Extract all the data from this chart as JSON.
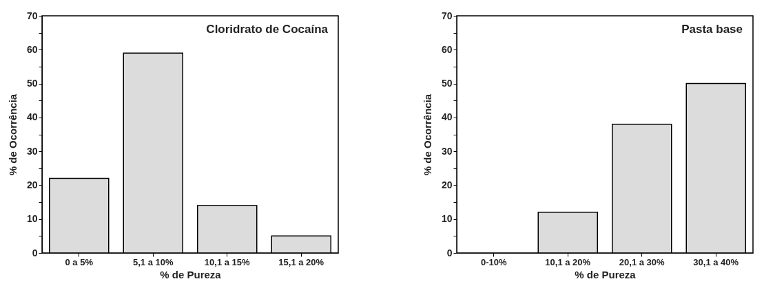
{
  "chart_data": [
    {
      "type": "bar",
      "title": "Cloridrato de Cocaína",
      "xlabel": "% de Pureza",
      "ylabel": "% de Ocorrência",
      "categories": [
        "0 a 5%",
        "5,1 a 10%",
        "10,1 a 15%",
        "15,1 a 20%"
      ],
      "values": [
        22,
        59,
        14,
        5
      ],
      "color": "#dcdcdc",
      "ylim": [
        0,
        70
      ],
      "yticks": [
        0,
        {
          "value": 5,
          "label": null
        },
        10,
        {
          "value": 15,
          "label": null
        },
        20,
        {
          "value": 25,
          "label": null
        },
        30,
        {
          "value": 35,
          "label": null
        },
        40,
        {
          "value": 45,
          "label": null
        },
        50,
        {
          "value": 55,
          "label": null
        },
        60,
        {
          "value": 65,
          "label": null
        },
        70
      ],
      "grid": false
    },
    {
      "type": "bar",
      "title": "Pasta base",
      "xlabel": "% de Pureza",
      "ylabel": "% de Ocorrência",
      "categories": [
        "0-10%",
        "10,1 a 20%",
        "20,1 a 30%",
        "30,1 a 40%"
      ],
      "values": [
        null,
        12,
        38,
        50
      ],
      "color": "#dcdcdc",
      "ylim": [
        0,
        70
      ],
      "yticks": [
        0,
        {
          "value": 5,
          "label": null
        },
        10,
        {
          "value": 15,
          "label": null
        },
        20,
        {
          "value": 25,
          "label": null
        },
        30,
        {
          "value": 35,
          "label": null
        },
        40,
        {
          "value": 45,
          "label": null
        },
        50,
        {
          "value": 55,
          "label": null
        },
        60,
        {
          "value": 65,
          "label": null
        },
        70
      ],
      "grid": false
    }
  ]
}
